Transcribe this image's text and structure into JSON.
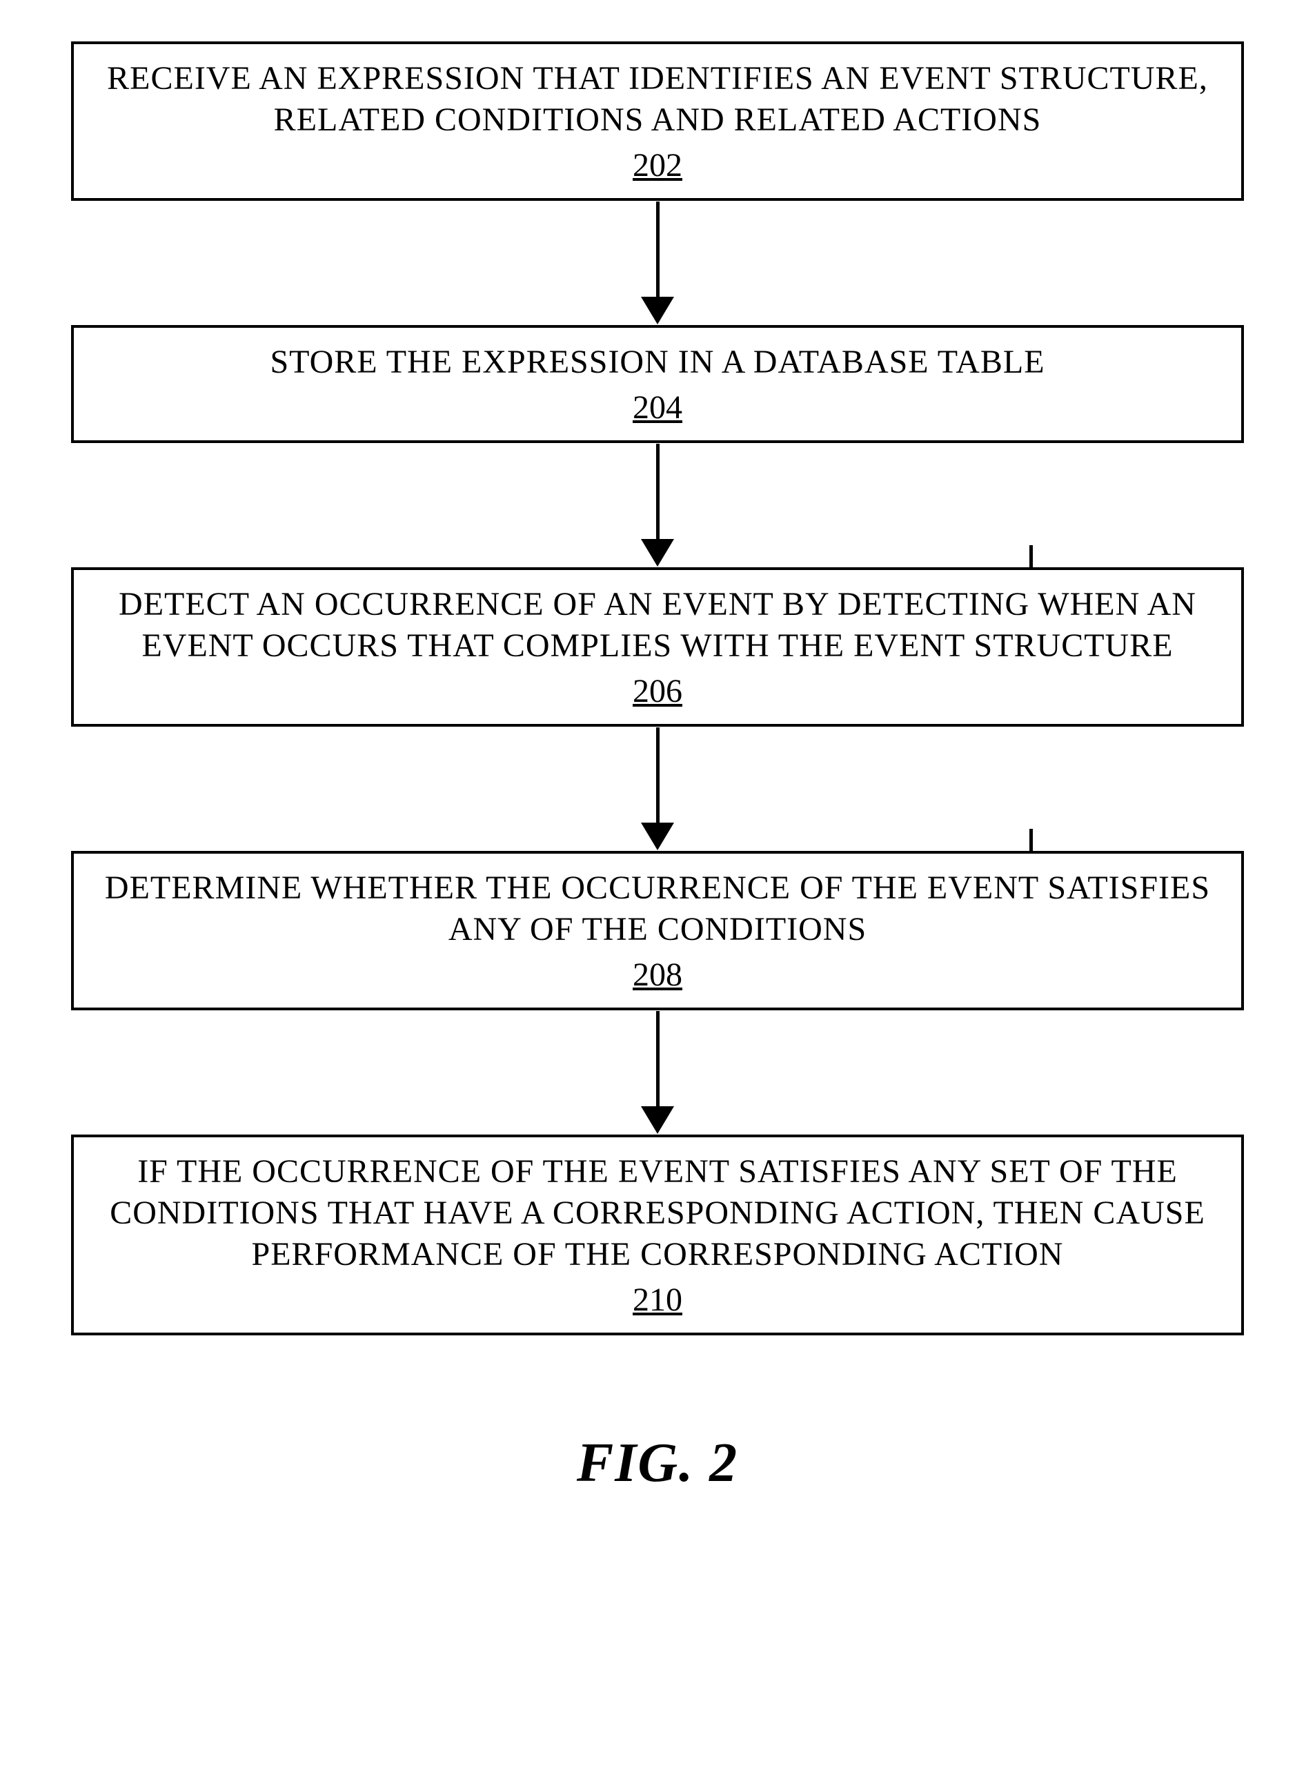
{
  "flowchart": {
    "type": "flowchart",
    "background_color": "#ffffff",
    "box_border_color": "#000000",
    "box_border_width": 4,
    "arrow_color": "#000000",
    "text_color": "#000000",
    "font_family": "Times New Roman",
    "box_font_size": 48,
    "caption_font_size": 80,
    "nodes": [
      {
        "id": "202",
        "text": "RECEIVE AN EXPRESSION THAT IDENTIFIES AN EVENT STRUCTURE, RELATED CONDITIONS AND RELATED ACTIONS",
        "ref": "202",
        "has_top_tick": false
      },
      {
        "id": "204",
        "text": "STORE THE EXPRESSION IN A DATABASE TABLE",
        "ref": "204",
        "has_top_tick": false
      },
      {
        "id": "206",
        "text": "DETECT AN OCCURRENCE OF AN EVENT BY DETECTING WHEN AN EVENT OCCURS THAT COMPLIES WITH THE EVENT STRUCTURE",
        "ref": "206",
        "has_top_tick": true
      },
      {
        "id": "208",
        "text": "DETERMINE WHETHER THE OCCURRENCE OF THE EVENT SATISFIES ANY OF THE CONDITIONS",
        "ref": "208",
        "has_top_tick": true
      },
      {
        "id": "210",
        "text": "IF THE OCCURRENCE OF THE EVENT SATISFIES ANY SET OF THE CONDITIONS THAT HAVE A CORRESPONDING ACTION, THEN CAUSE PERFORMANCE OF THE CORRESPONDING ACTION",
        "ref": "210",
        "has_top_tick": false
      }
    ],
    "edges": [
      {
        "from": "202",
        "to": "204"
      },
      {
        "from": "204",
        "to": "206"
      },
      {
        "from": "206",
        "to": "208"
      },
      {
        "from": "208",
        "to": "210"
      }
    ],
    "caption": "FIG. 2"
  }
}
